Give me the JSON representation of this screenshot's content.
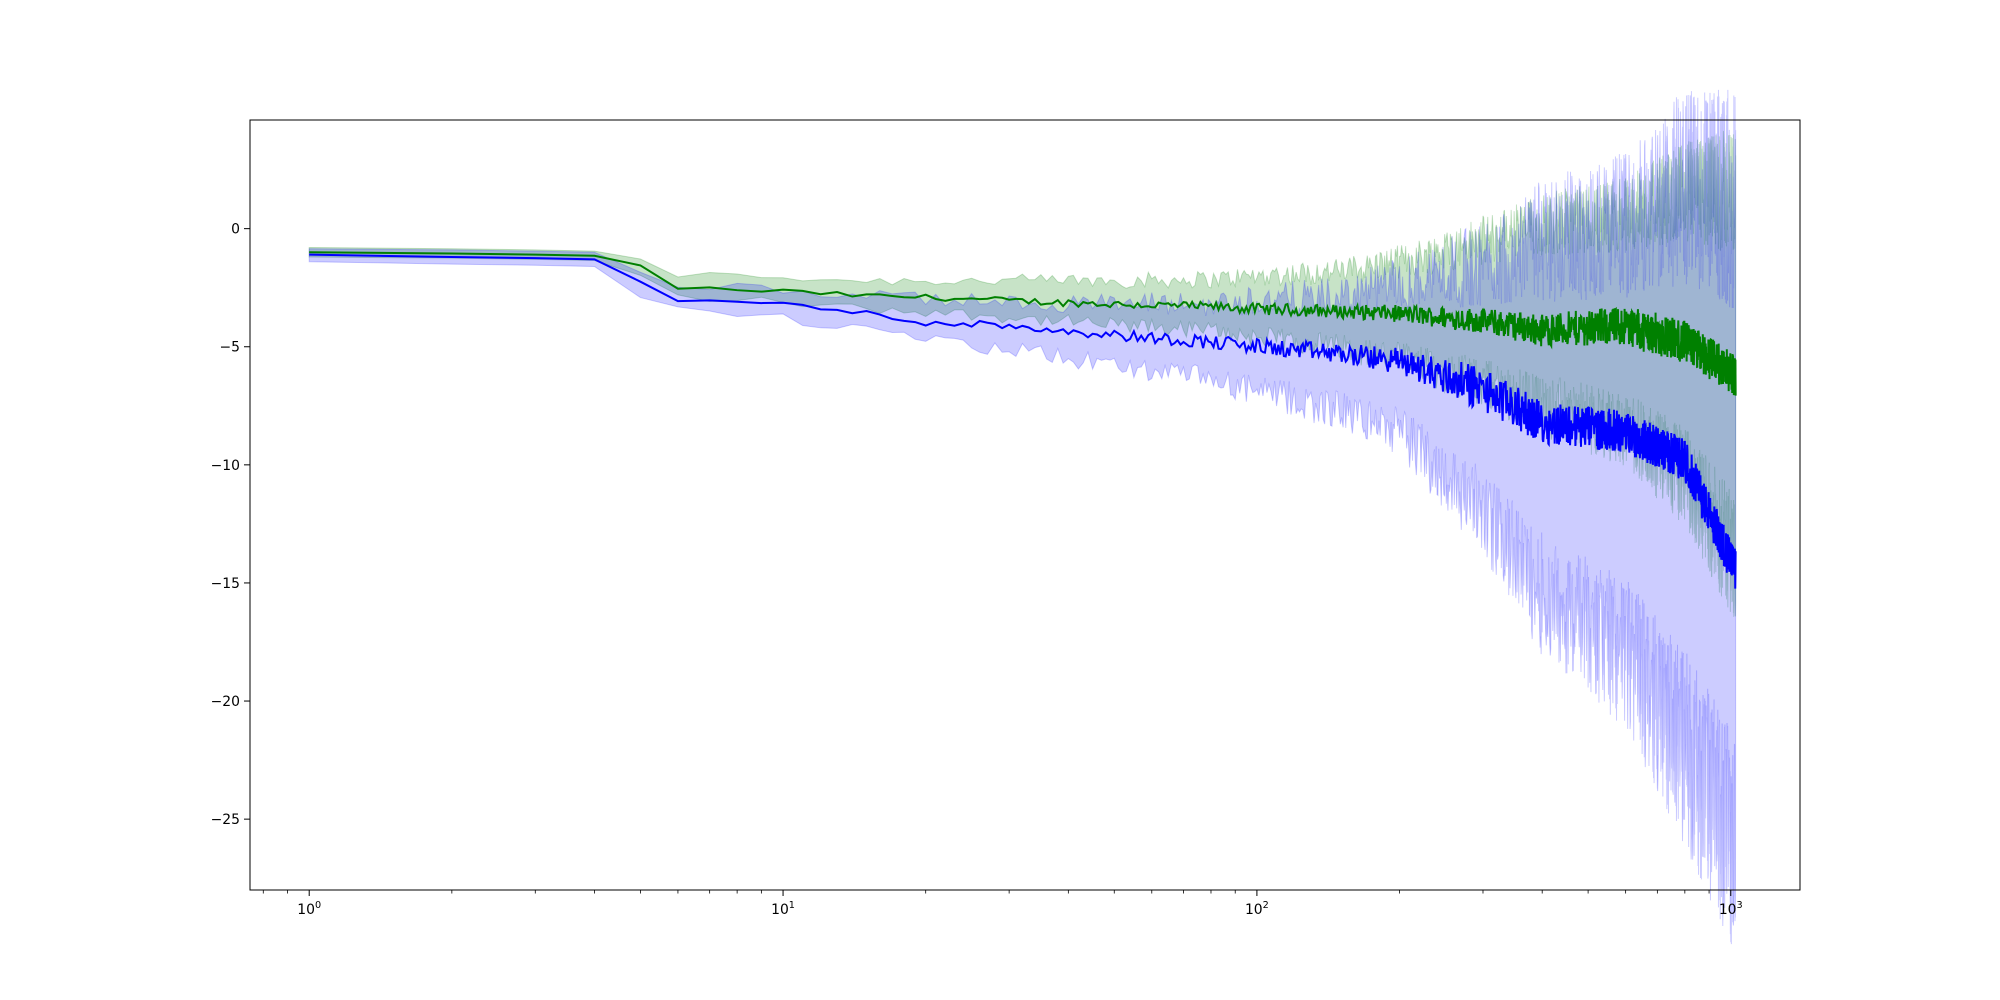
{
  "chart_data": {
    "type": "line",
    "title": "",
    "xlabel": "",
    "ylabel": "",
    "xscale": "log",
    "xlim": [
      0.75,
      1400
    ],
    "ylim": [
      -28,
      4.6
    ],
    "grid": false,
    "legend": "none",
    "x_ticks": [
      {
        "value": 1,
        "base": "10",
        "exp": "0"
      },
      {
        "value": 10,
        "base": "10",
        "exp": "1"
      },
      {
        "value": 100,
        "base": "10",
        "exp": "2"
      },
      {
        "value": 1000,
        "base": "10",
        "exp": "3"
      }
    ],
    "y_ticks": [
      {
        "value": 0,
        "label": "0"
      },
      {
        "value": -5,
        "label": "−5"
      },
      {
        "value": -10,
        "label": "−10"
      },
      {
        "value": -15,
        "label": "−15"
      },
      {
        "value": -20,
        "label": "−20"
      },
      {
        "value": -25,
        "label": "−25"
      }
    ],
    "series": [
      {
        "color": "#008000",
        "band_color": "#008000",
        "band_opacity": 0.22,
        "x_range": [
          1,
          1024
        ],
        "points": [
          [
            1,
            -1.0,
            -0.8,
            -1.2
          ],
          [
            2,
            -1.05,
            -0.85,
            -1.25
          ],
          [
            3,
            -1.1,
            -0.9,
            -1.3
          ],
          [
            4,
            -1.15,
            -0.95,
            -1.35
          ],
          [
            5,
            -1.6,
            -1.2,
            -2.0
          ],
          [
            6,
            -2.5,
            -1.95,
            -2.9
          ],
          [
            8,
            -2.6,
            -2.0,
            -3.0
          ],
          [
            10,
            -2.65,
            -2.05,
            -3.1
          ],
          [
            15,
            -2.85,
            -2.2,
            -3.4
          ],
          [
            20,
            -2.9,
            -2.2,
            -3.5
          ],
          [
            30,
            -3.05,
            -2.2,
            -3.75
          ],
          [
            50,
            -3.2,
            -2.2,
            -4.1
          ],
          [
            80,
            -3.3,
            -2.15,
            -4.3
          ],
          [
            100,
            -3.4,
            -2.0,
            -4.6
          ],
          [
            150,
            -3.5,
            -1.8,
            -5.0
          ],
          [
            200,
            -3.6,
            -1.4,
            -5.5
          ],
          [
            300,
            -3.9,
            -0.5,
            -6.5
          ],
          [
            400,
            -4.3,
            0.2,
            -7.5
          ],
          [
            600,
            -4.1,
            0.6,
            -8.5
          ],
          [
            800,
            -4.8,
            1.6,
            -10.5
          ],
          [
            1024,
            -6.2,
            1.6,
            -14.0
          ]
        ]
      },
      {
        "color": "#0000ff",
        "band_color": "#0000ff",
        "band_opacity": 0.2,
        "x_range": [
          1,
          1024
        ],
        "points": [
          [
            1,
            -1.1,
            -0.85,
            -1.4
          ],
          [
            2,
            -1.2,
            -0.9,
            -1.5
          ],
          [
            3,
            -1.25,
            -0.95,
            -1.55
          ],
          [
            4,
            -1.3,
            -1.0,
            -1.6
          ],
          [
            5,
            -2.3,
            -1.8,
            -2.8
          ],
          [
            6,
            -3.0,
            -2.4,
            -3.5
          ],
          [
            8,
            -3.1,
            -2.5,
            -3.6
          ],
          [
            10,
            -3.2,
            -2.6,
            -3.8
          ],
          [
            15,
            -3.6,
            -2.8,
            -4.3
          ],
          [
            20,
            -3.95,
            -3.0,
            -4.8
          ],
          [
            30,
            -4.1,
            -3.1,
            -5.1
          ],
          [
            50,
            -4.5,
            -3.2,
            -5.8
          ],
          [
            80,
            -4.8,
            -3.2,
            -6.4
          ],
          [
            100,
            -5.0,
            -3.0,
            -6.9
          ],
          [
            150,
            -5.3,
            -2.9,
            -7.7
          ],
          [
            200,
            -5.6,
            -2.3,
            -8.6
          ],
          [
            300,
            -6.8,
            -1.5,
            -12.0
          ],
          [
            400,
            -8.2,
            -0.5,
            -15.5
          ],
          [
            600,
            -8.6,
            0.2,
            -18.0
          ],
          [
            800,
            -9.8,
            1.8,
            -22.0
          ],
          [
            1024,
            -14.5,
            1.2,
            -26.0
          ]
        ]
      }
    ]
  }
}
